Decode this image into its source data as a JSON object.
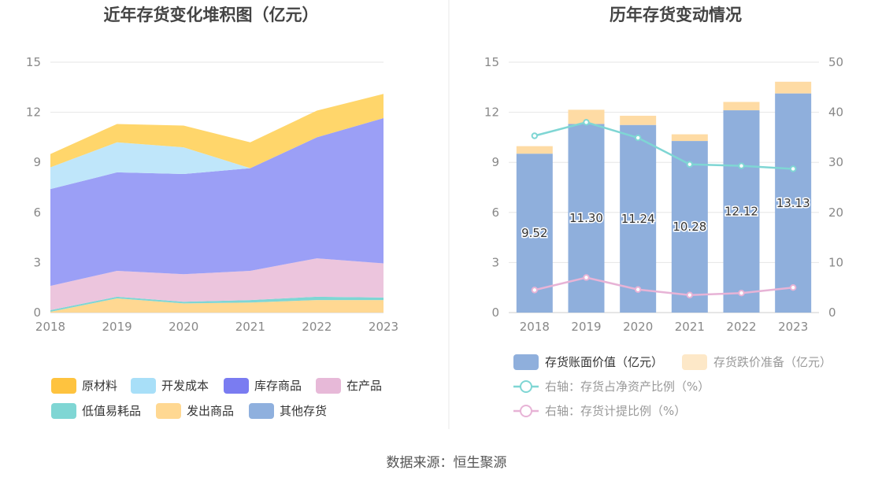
{
  "left_chart": {
    "title": "近年存货变化堆积图（亿元）",
    "chart_data": {
      "type": "area",
      "stacked": true,
      "x": [
        "2018",
        "2019",
        "2020",
        "2021",
        "2022",
        "2023"
      ],
      "ylim": [
        0,
        15
      ],
      "yticks": [
        "0",
        "3",
        "6",
        "9",
        "12",
        "15"
      ],
      "series": [
        {
          "name": "发出商品",
          "color": "#ffd892",
          "values": [
            0.05,
            0.85,
            0.55,
            0.6,
            0.75,
            0.75
          ]
        },
        {
          "name": "低值易耗品",
          "color": "#7fd6d4",
          "values": [
            0.1,
            0.1,
            0.1,
            0.15,
            0.2,
            0.15
          ]
        },
        {
          "name": "其他存货",
          "color": "#8fb0de",
          "values": [
            0,
            0,
            0,
            0,
            0,
            0
          ]
        },
        {
          "name": "在产品",
          "color": "#ecc5dd",
          "values": [
            1.45,
            1.55,
            1.65,
            1.75,
            2.3,
            2.05
          ]
        },
        {
          "name": "库存商品",
          "color": "#9b9ff6",
          "values": [
            5.8,
            5.9,
            6.0,
            6.15,
            7.25,
            8.7
          ]
        },
        {
          "name": "开发成本",
          "color": "#bfe6fa",
          "values": [
            1.3,
            1.8,
            1.6,
            0,
            0,
            0
          ]
        },
        {
          "name": "原材料",
          "color": "#ffd66b",
          "values": [
            0.8,
            1.1,
            1.3,
            1.55,
            1.6,
            1.45
          ]
        }
      ]
    },
    "legend": [
      {
        "label": "原材料",
        "color": "#fec33f"
      },
      {
        "label": "开发成本",
        "color": "#a8dff8"
      },
      {
        "label": "库存商品",
        "color": "#7a7cf1"
      },
      {
        "label": "在产品",
        "color": "#e7b9d8"
      },
      {
        "label": "低值易耗品",
        "color": "#7fd6d4"
      },
      {
        "label": "发出商品",
        "color": "#ffd892"
      },
      {
        "label": "其他存货",
        "color": "#8fb0de"
      }
    ]
  },
  "right_chart": {
    "title": "历年存货变动情况",
    "chart_data": {
      "type": "bar",
      "x": [
        "2018",
        "2019",
        "2020",
        "2021",
        "2022",
        "2023"
      ],
      "ylim": [
        0,
        15
      ],
      "yticks": [
        "0",
        "3",
        "6",
        "9",
        "12",
        "15"
      ],
      "y2lim": [
        0,
        50
      ],
      "y2ticks": [
        "0",
        "10",
        "20",
        "30",
        "40",
        "50"
      ],
      "bar_series": [
        {
          "name": "存货账面价值（亿元）",
          "color": "#8fafdc",
          "values": [
            9.52,
            11.3,
            11.24,
            10.28,
            12.12,
            13.13
          ],
          "labels": [
            "9.52",
            "11.30",
            "11.24",
            "10.28",
            "12.12",
            "13.13"
          ]
        },
        {
          "name": "存货跌价准备（亿元）",
          "color": "#fedba4",
          "values": [
            0.45,
            0.85,
            0.55,
            0.4,
            0.5,
            0.7
          ]
        }
      ],
      "line_series": [
        {
          "name": "右轴：存货占净资产比例（%）",
          "color": "#7fd6d4",
          "values": [
            35.3,
            38.0,
            34.9,
            29.6,
            29.3,
            28.7
          ]
        },
        {
          "name": "右轴：存货计提比例（%）",
          "color": "#e7b3d6",
          "values": [
            4.5,
            7.0,
            4.6,
            3.5,
            3.9,
            5.0
          ]
        }
      ]
    }
  },
  "source": "数据来源：恒生聚源"
}
